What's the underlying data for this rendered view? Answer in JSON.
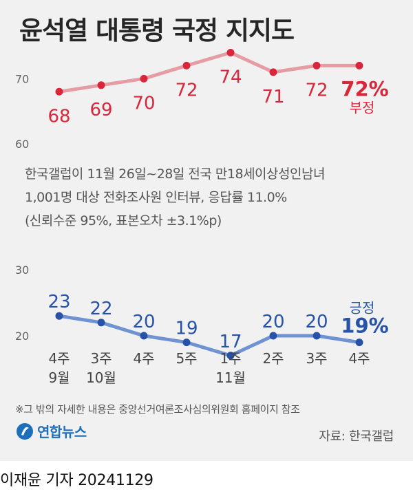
{
  "title": "윤석열 대통령 국정 지지도",
  "survey_lines": [
    "한국갤럽이 11월 26일~28일 전국 만18세이상성인남녀",
    "1,001명 대상 전화조사원 인터뷰, 응답률 11.0%",
    "(신뢰수준 95%, 표본오차 ±3.1%p)"
  ],
  "footnote": "※그 밖의 자세한 내용은 중앙선거여론조사심의위원회 홈페이지 참조",
  "logo_text": "연합뉴스",
  "source": "자료: 한국갤럽",
  "byline": "이재윤 기자 20241129",
  "colors": {
    "negative": "#d9263a",
    "negative_line": "#e59ca3",
    "positive": "#2653a8",
    "positive_line": "#6f92d2",
    "axis": "#666666",
    "background": "#f1f1f1"
  },
  "chart_data": [
    {
      "type": "line",
      "x": [
        "4주\n9월",
        "3주\n10월",
        "4주",
        "5주",
        "1주\n11월",
        "2주",
        "3주",
        "4주"
      ],
      "series": [
        {
          "name": "부정",
          "values": [
            68,
            69,
            70,
            72,
            74,
            71,
            72,
            72
          ],
          "last_label": "72%"
        }
      ],
      "yticks": [
        60,
        70
      ],
      "ylim": [
        60,
        75
      ]
    },
    {
      "type": "line",
      "x": [
        "4주\n9월",
        "3주\n10월",
        "4주",
        "5주",
        "1주\n11월",
        "2주",
        "3주",
        "4주"
      ],
      "series": [
        {
          "name": "긍정",
          "values": [
            23,
            22,
            20,
            19,
            17,
            20,
            20,
            19
          ],
          "last_label": "19%"
        }
      ],
      "yticks": [
        20,
        30
      ],
      "ylim": [
        15,
        30
      ]
    }
  ]
}
